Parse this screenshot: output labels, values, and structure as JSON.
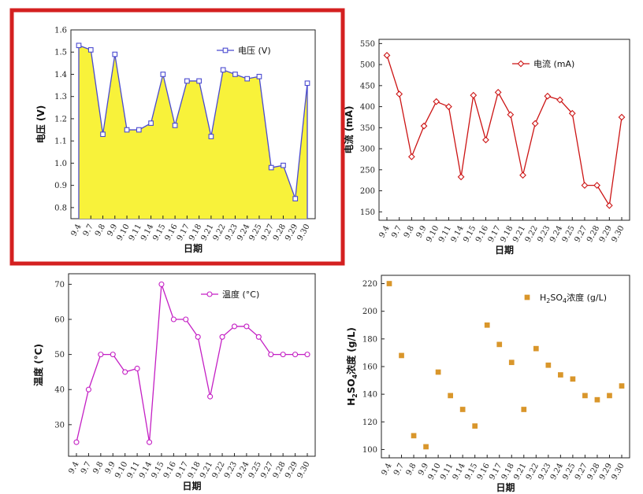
{
  "colors": {
    "highlight_frame": "#d42020",
    "voltage_line": "#4a4ad0",
    "voltage_fill": "#f8f23a",
    "current": "#cc1414",
    "temperature": "#c41fc4",
    "acid": "#d9962b"
  },
  "chart_data": [
    {
      "type": "area",
      "xlabel": "日期",
      "ylabel": "电压 (V)",
      "legend": "电压 (V)",
      "legend_position": "top-right",
      "marker": "square",
      "categories": [
        "9.4",
        "9.7",
        "9.8",
        "9.9",
        "9.10",
        "9.11",
        "9.14",
        "9.15",
        "9.16",
        "9.17",
        "9.18",
        "9.21",
        "9.22",
        "9.23",
        "9.24",
        "9.25",
        "9.27",
        "9.28",
        "9.29",
        "9.30"
      ],
      "values": [
        1.53,
        1.51,
        1.13,
        1.49,
        1.15,
        1.15,
        1.18,
        1.4,
        1.17,
        1.37,
        1.37,
        1.12,
        1.42,
        1.4,
        1.38,
        1.39,
        0.98,
        0.99,
        0.84,
        1.36
      ],
      "ylim": [
        0.75,
        1.6
      ],
      "yticks": [
        "0.8",
        "0.9",
        "1.0",
        "1.1",
        "1.2",
        "1.3",
        "1.4",
        "1.5",
        "1.6"
      ],
      "grid": false
    },
    {
      "type": "line",
      "xlabel": "日期",
      "ylabel": "电流 (mA)",
      "legend": "电流 (mA)",
      "legend_position": "top-right",
      "marker": "diamond",
      "categories": [
        "9.4",
        "9.7",
        "9.8",
        "9.9",
        "9.10",
        "9.11",
        "9.14",
        "9.15",
        "9.16",
        "9.17",
        "9.18",
        "9.21",
        "9.22",
        "9.23",
        "9.24",
        "9.25",
        "9.27",
        "9.28",
        "9.29",
        "9.30"
      ],
      "values": [
        522,
        430,
        281,
        354,
        412,
        400,
        233,
        427,
        321,
        434,
        381,
        237,
        360,
        425,
        416,
        384,
        213,
        213,
        165,
        375
      ],
      "ylim": [
        130,
        560
      ],
      "yticks": [
        "150",
        "200",
        "250",
        "300",
        "350",
        "400",
        "450",
        "500",
        "550"
      ],
      "grid": false
    },
    {
      "type": "line",
      "xlabel": "日期",
      "ylabel": "温度 (°C)",
      "legend": "温度 (°C)",
      "legend_position": "top-right",
      "marker": "circle",
      "categories": [
        "9.4",
        "9.7",
        "9.8",
        "9.9",
        "9.10",
        "9.11",
        "9.14",
        "9.15",
        "9.16",
        "9.17",
        "9.18",
        "9.21",
        "9.22",
        "9.23",
        "9.24",
        "9.25",
        "9.27",
        "9.28",
        "9.29",
        "9.30"
      ],
      "values": [
        25,
        40,
        50,
        50,
        45,
        46,
        25,
        70,
        60,
        60,
        55,
        38,
        55,
        58,
        58,
        55,
        50,
        50,
        50,
        50
      ],
      "ylim": [
        21,
        73
      ],
      "yticks": [
        "30",
        "40",
        "50",
        "60",
        "70"
      ],
      "grid": false
    },
    {
      "type": "scatter",
      "xlabel": "日期",
      "ylabel": "H2SO4浓度 (g/L)",
      "legend": "H2SO4浓度 (g/L)",
      "legend_position": "top-right",
      "marker": "square",
      "categories": [
        "9.4",
        "9.7",
        "9.8",
        "9.9",
        "9.10",
        "9.11",
        "9.14",
        "9.15",
        "9.16",
        "9.17",
        "9.18",
        "9.21",
        "9.22",
        "9.23",
        "9.24",
        "9.25",
        "9.27",
        "9.28",
        "9.29",
        "9.30"
      ],
      "values": [
        220,
        168,
        110,
        102,
        156,
        139,
        129,
        117,
        190,
        176,
        163,
        129,
        173,
        161,
        154,
        151,
        139,
        136,
        139,
        146
      ],
      "ylim": [
        94,
        226
      ],
      "yticks": [
        "100",
        "120",
        "140",
        "160",
        "180",
        "200",
        "220"
      ],
      "grid": false
    }
  ]
}
